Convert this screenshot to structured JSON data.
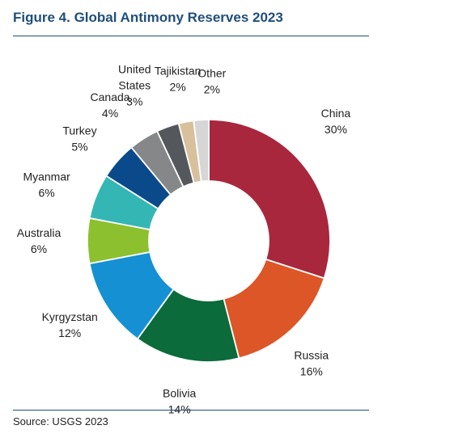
{
  "title": "Figure 4. Global Antimony Reserves 2023",
  "source": "Source: USGS 2023",
  "chart_data": {
    "type": "pie",
    "title": "Figure 4. Global Antimony Reserves 2023",
    "donut": true,
    "unit": "%",
    "slices": [
      {
        "name": "China",
        "value": 30,
        "label": "China",
        "value_label": "30%",
        "color": "#a8273d"
      },
      {
        "name": "Russia",
        "value": 16,
        "label": "Russia",
        "value_label": "16%",
        "color": "#dc5628"
      },
      {
        "name": "Bolivia",
        "value": 14,
        "label": "Bolivia",
        "value_label": "14%",
        "color": "#0b6b3a"
      },
      {
        "name": "Kyrgyzstan",
        "value": 12,
        "label": "Kyrgyzstan",
        "value_label": "12%",
        "color": "#1591d3"
      },
      {
        "name": "Australia",
        "value": 6,
        "label": "Australia",
        "value_label": "6%",
        "color": "#8dc02e"
      },
      {
        "name": "Myanmar",
        "value": 6,
        "label": "Myanmar",
        "value_label": "6%",
        "color": "#34b7b4"
      },
      {
        "name": "Turkey",
        "value": 5,
        "label": "Turkey",
        "value_label": "5%",
        "color": "#0a4a8a"
      },
      {
        "name": "Canada",
        "value": 4,
        "label": "Canada",
        "value_label": "4%",
        "color": "#858789"
      },
      {
        "name": "United States",
        "value": 3,
        "label": "United\nStates",
        "value_label": "3%",
        "color": "#54575c"
      },
      {
        "name": "Tajikistan",
        "value": 2,
        "label": "Tajikistan",
        "value_label": "2%",
        "color": "#d8c09c"
      },
      {
        "name": "Other",
        "value": 2,
        "label": "Other",
        "value_label": "2%",
        "color": "#d6d6d6"
      }
    ]
  }
}
